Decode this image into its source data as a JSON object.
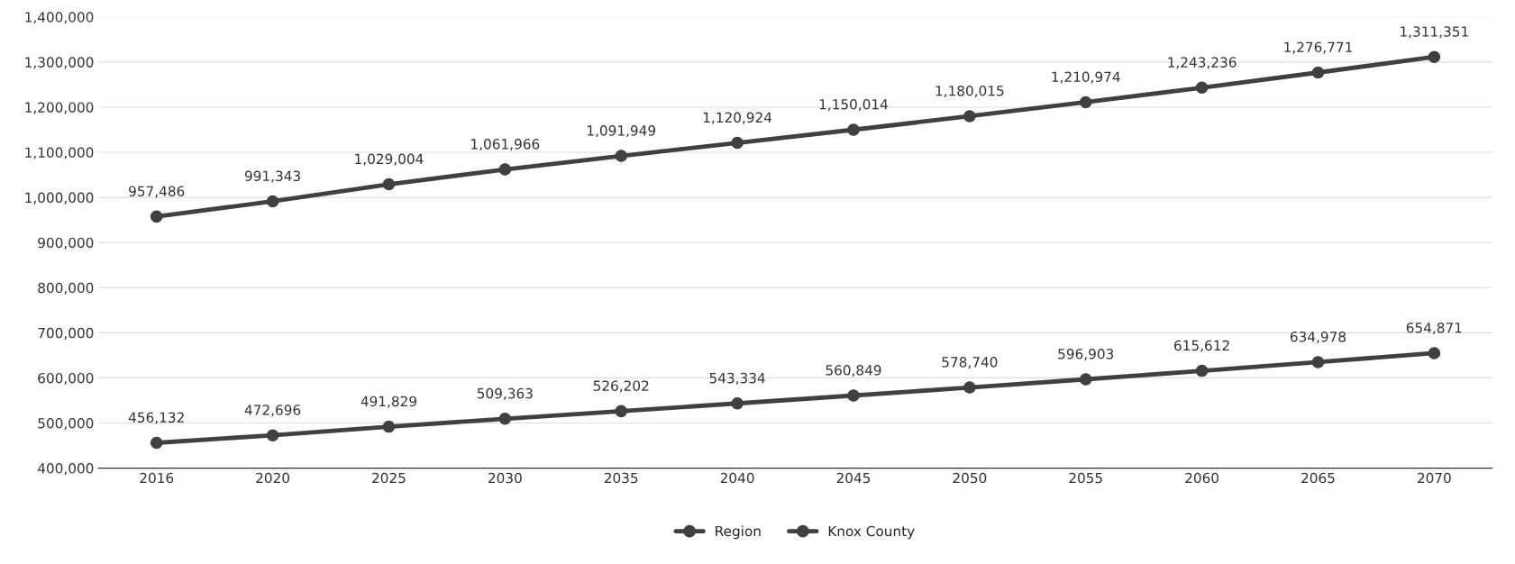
{
  "chart_data": {
    "type": "line",
    "categories": [
      "2016",
      "2020",
      "2025",
      "2030",
      "2035",
      "2040",
      "2045",
      "2050",
      "2055",
      "2060",
      "2065",
      "2070"
    ],
    "series": [
      {
        "name": "Region",
        "color": "#404040",
        "values": [
          957486,
          991343,
          1029004,
          1061966,
          1091949,
          1120924,
          1150014,
          1180015,
          1210974,
          1243236,
          1276771,
          1311351
        ],
        "value_labels": [
          "957,486",
          "991,343",
          "1,029,004",
          "1,061,966",
          "1,091,949",
          "1,120,924",
          "1,150,014",
          "1,180,015",
          "1,210,974",
          "1,243,236",
          "1,276,771",
          "1,311,351"
        ]
      },
      {
        "name": "Knox County",
        "color": "#404040",
        "values": [
          456132,
          472696,
          491829,
          509363,
          526202,
          543334,
          560849,
          578740,
          596903,
          615612,
          634978,
          654871
        ],
        "value_labels": [
          "456,132",
          "472,696",
          "491,829",
          "509,363",
          "526,202",
          "543,334",
          "560,849",
          "578,740",
          "596,903",
          "615,612",
          "634,978",
          "654,871"
        ]
      }
    ],
    "ylim": [
      400000,
      1400000
    ],
    "yticks": [
      {
        "value": 400000,
        "label": "400,000"
      },
      {
        "value": 500000,
        "label": "500,000"
      },
      {
        "value": 600000,
        "label": "600,000"
      },
      {
        "value": 700000,
        "label": "700,000"
      },
      {
        "value": 800000,
        "label": "800,000"
      },
      {
        "value": 900000,
        "label": "900,000"
      },
      {
        "value": 1000000,
        "label": "1,000,000"
      },
      {
        "value": 1100000,
        "label": "1,100,000"
      },
      {
        "value": 1200000,
        "label": "1,200,000"
      },
      {
        "value": 1300000,
        "label": "1,300,000"
      },
      {
        "value": 1400000,
        "label": "1,400,000"
      }
    ],
    "legend": "bottom",
    "marker": "circle",
    "line_style": "solid",
    "grid": "y"
  }
}
